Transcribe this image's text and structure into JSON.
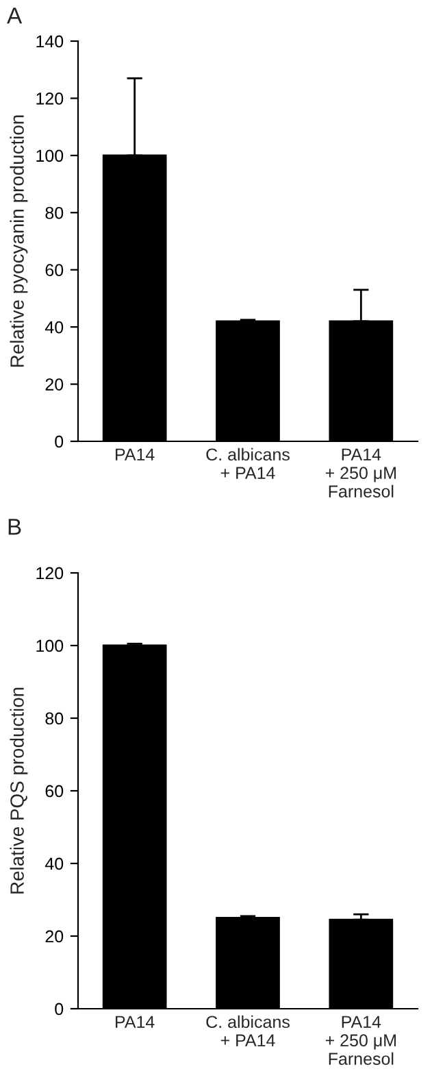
{
  "chart_data": [
    {
      "type": "bar",
      "ylabel": "Relative pyocyanin production",
      "categories": [
        "PA14",
        "C. albicans\n+ PA14",
        "PA14\n+ 250 μM\nFarnesol"
      ],
      "values": [
        100,
        42,
        42
      ],
      "errors": [
        [
          100,
          127
        ],
        [
          42,
          42.5
        ],
        [
          42,
          53
        ]
      ],
      "color": "#000000",
      "ylim": [
        0,
        140
      ],
      "yticks": [
        0,
        20,
        40,
        60,
        80,
        100,
        120,
        140
      ],
      "grid": false,
      "legend": false,
      "annotations": [
        "A"
      ]
    },
    {
      "type": "bar",
      "ylabel": "Relative PQS production",
      "categories": [
        "PA14",
        "C. albicans\n+ PA14",
        "PA14\n+ 250 μM\nFarnesol"
      ],
      "values": [
        100,
        25,
        24.5
      ],
      "errors": [
        [
          100,
          100.5
        ],
        [
          25,
          25.5
        ],
        [
          24.5,
          26
        ]
      ],
      "color": "#000000",
      "ylim": [
        0,
        120
      ],
      "yticks": [
        0,
        20,
        40,
        60,
        80,
        100,
        120
      ],
      "grid": false,
      "legend": false,
      "annotations": [
        "B"
      ]
    }
  ]
}
